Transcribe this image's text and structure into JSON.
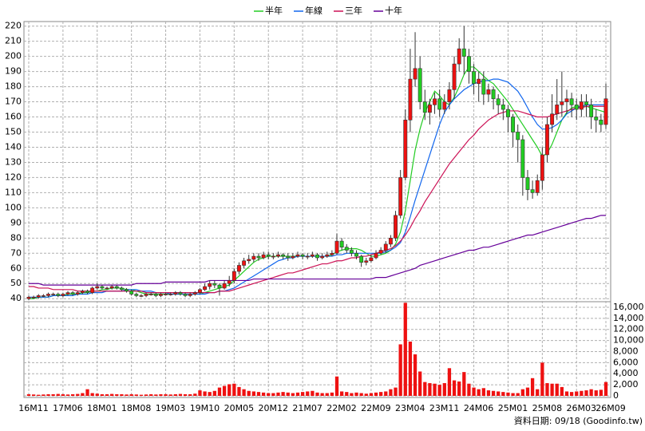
{
  "chart_data": {
    "type": "candlestick",
    "categories": [
      "16M11",
      null,
      null,
      null,
      null,
      null,
      null,
      "17M06",
      null,
      null,
      null,
      null,
      null,
      null,
      "18M01",
      null,
      null,
      null,
      null,
      null,
      null,
      "18M08",
      null,
      null,
      null,
      null,
      null,
      null,
      "19M03",
      null,
      null,
      null,
      null,
      null,
      null,
      "19M10",
      null,
      null,
      null,
      null,
      null,
      null,
      "20M05",
      null,
      null,
      null,
      null,
      null,
      null,
      "20M12",
      null,
      null,
      null,
      null,
      null,
      null,
      "21M07",
      null,
      null,
      null,
      null,
      null,
      null,
      "22M02",
      null,
      null,
      null,
      null,
      null,
      null,
      "22M09",
      null,
      null,
      null,
      null,
      null,
      null,
      "23M04",
      null,
      null,
      null,
      null,
      null,
      null,
      "23M11",
      null,
      null,
      null,
      null,
      null,
      null,
      "24M06",
      null,
      null,
      null,
      null,
      null,
      null,
      "25M01",
      null,
      null,
      null,
      null,
      null,
      null,
      "25M08",
      null,
      null,
      null,
      null,
      null,
      null,
      "26M03",
      null,
      null,
      null,
      null,
      null,
      "26M09"
    ],
    "open": [
      40,
      41,
      41,
      42,
      42,
      43,
      43,
      42,
      43,
      44,
      43,
      44,
      45,
      44,
      47,
      48,
      47,
      47,
      48,
      47,
      46,
      45,
      43,
      42,
      42,
      43,
      43,
      42,
      43,
      43,
      43,
      44,
      43,
      42,
      43,
      44,
      46,
      48,
      50,
      49,
      47,
      50,
      52,
      58,
      62,
      65,
      66,
      68,
      67,
      69,
      68,
      68,
      69,
      68,
      67,
      68,
      69,
      68,
      68,
      69,
      67,
      68,
      69,
      70,
      78,
      74,
      72,
      70,
      68,
      64,
      65,
      67,
      70,
      72,
      76,
      80,
      95,
      120,
      158,
      185,
      192,
      170,
      163,
      168,
      172,
      165,
      170,
      178,
      195,
      205,
      200,
      190,
      182,
      185,
      175,
      178,
      172,
      168,
      165,
      160,
      150,
      145,
      120,
      112,
      110,
      118,
      135,
      155,
      162,
      168,
      170,
      172,
      168,
      165,
      170,
      168,
      160,
      158,
      155
    ],
    "high": [
      42,
      42,
      43,
      43,
      44,
      44,
      44,
      44,
      45,
      45,
      45,
      46,
      46,
      48,
      50,
      49,
      48,
      49,
      49,
      48,
      47,
      46,
      44,
      43,
      44,
      44,
      44,
      44,
      44,
      44,
      45,
      45,
      44,
      44,
      45,
      47,
      50,
      52,
      52,
      50,
      52,
      55,
      60,
      64,
      67,
      69,
      70,
      70,
      71,
      71,
      70,
      71,
      70,
      70,
      70,
      71,
      70,
      70,
      71,
      70,
      70,
      71,
      72,
      83,
      80,
      76,
      74,
      72,
      69,
      67,
      69,
      72,
      74,
      78,
      82,
      98,
      125,
      165,
      205,
      216,
      200,
      178,
      172,
      176,
      178,
      175,
      183,
      200,
      212,
      220,
      205,
      195,
      190,
      190,
      182,
      180,
      175,
      172,
      168,
      162,
      155,
      148,
      125,
      118,
      122,
      140,
      160,
      175,
      185,
      190,
      178,
      176,
      172,
      175,
      175,
      172,
      165,
      162,
      182
    ],
    "low": [
      39,
      40,
      40,
      41,
      41,
      42,
      41,
      41,
      42,
      42,
      42,
      43,
      43,
      43,
      46,
      46,
      46,
      46,
      46,
      45,
      44,
      42,
      41,
      41,
      41,
      42,
      41,
      41,
      42,
      42,
      42,
      42,
      41,
      41,
      42,
      43,
      45,
      46,
      47,
      42,
      46,
      48,
      50,
      56,
      60,
      63,
      64,
      65,
      66,
      66,
      66,
      67,
      66,
      65,
      66,
      67,
      66,
      66,
      67,
      65,
      66,
      67,
      68,
      69,
      72,
      70,
      68,
      66,
      61,
      62,
      64,
      66,
      69,
      70,
      74,
      78,
      93,
      118,
      150,
      180,
      165,
      158,
      155,
      162,
      160,
      162,
      165,
      172,
      190,
      188,
      182,
      175,
      170,
      168,
      170,
      165,
      162,
      158,
      150,
      140,
      130,
      108,
      105,
      106,
      108,
      112,
      130,
      150,
      158,
      160,
      162,
      160,
      158,
      160,
      160,
      152,
      150,
      150,
      152
    ],
    "close": [
      41,
      41,
      42,
      42,
      43,
      43,
      42,
      43,
      44,
      43,
      44,
      45,
      44,
      47,
      48,
      47,
      47,
      48,
      47,
      46,
      45,
      43,
      42,
      42,
      43,
      43,
      42,
      43,
      43,
      43,
      44,
      43,
      42,
      43,
      44,
      46,
      48,
      50,
      49,
      47,
      50,
      52,
      58,
      62,
      65,
      66,
      68,
      67,
      69,
      68,
      68,
      69,
      68,
      67,
      68,
      69,
      68,
      68,
      69,
      67,
      68,
      69,
      70,
      78,
      74,
      72,
      70,
      68,
      64,
      65,
      67,
      70,
      72,
      76,
      80,
      95,
      120,
      158,
      185,
      192,
      170,
      163,
      168,
      172,
      165,
      170,
      178,
      195,
      205,
      200,
      190,
      182,
      185,
      175,
      178,
      172,
      168,
      165,
      160,
      150,
      145,
      120,
      112,
      110,
      118,
      135,
      155,
      162,
      168,
      170,
      172,
      168,
      165,
      170,
      168,
      160,
      158,
      155,
      172
    ],
    "volume": [
      300,
      250,
      200,
      250,
      300,
      300,
      350,
      300,
      250,
      300,
      350,
      500,
      1200,
      500,
      400,
      300,
      300,
      350,
      300,
      300,
      250,
      300,
      250,
      200,
      250,
      300,
      250,
      300,
      300,
      250,
      300,
      350,
      300,
      300,
      400,
      1000,
      800,
      700,
      900,
      1500,
      1800,
      2100,
      2200,
      1600,
      1200,
      900,
      800,
      700,
      600,
      500,
      500,
      600,
      700,
      600,
      500,
      600,
      700,
      800,
      900,
      600,
      500,
      500,
      600,
      3500,
      800,
      700,
      500,
      600,
      500,
      400,
      500,
      600,
      700,
      800,
      1200,
      1500,
      9300,
      16800,
      9800,
      7500,
      4400,
      2500,
      2300,
      2200,
      2000,
      2300,
      5000,
      2800,
      2600,
      4300,
      2200,
      1500,
      1200,
      1400,
      1000,
      900,
      800,
      700,
      600,
      500,
      500,
      1200,
      1500,
      3200,
      1200,
      6000,
      2300,
      2200,
      2200,
      1600,
      800,
      700,
      800,
      900,
      1000,
      1200,
      1000,
      1100,
      2500
    ],
    "up_color": "#ee1111",
    "down_color": "#22cc22",
    "volume_color": "#ee1111",
    "series": [
      {
        "name": "半年",
        "color": "#22cc22",
        "values": [
          40,
          40,
          41,
          41,
          41,
          42,
          42,
          42,
          43,
          43,
          43,
          44,
          44,
          45,
          45,
          46,
          46,
          47,
          47,
          47,
          46,
          46,
          45,
          44,
          43,
          43,
          43,
          43,
          43,
          43,
          43,
          43,
          43,
          43,
          43,
          43,
          44,
          45,
          46,
          47,
          48,
          49,
          52,
          55,
          58,
          61,
          64,
          66,
          67,
          68,
          68,
          68,
          68,
          68,
          68,
          68,
          68,
          68,
          68,
          68,
          68,
          68,
          69,
          71,
          72,
          73,
          73,
          73,
          72,
          70,
          68,
          68,
          69,
          70,
          72,
          76,
          84,
          98,
          118,
          138,
          152,
          163,
          170,
          177,
          174,
          170,
          168,
          173,
          180,
          188,
          193,
          193,
          190,
          187,
          184,
          182,
          178,
          174,
          170,
          165,
          160,
          155,
          150,
          145,
          140,
          134,
          136,
          142,
          150,
          158,
          163,
          166,
          167,
          167,
          167,
          166,
          165,
          164,
          163
        ]
      },
      {
        "name": "年線",
        "color": "#1166ee",
        "values": [
          41,
          41,
          41,
          41,
          41,
          42,
          42,
          42,
          42,
          42,
          43,
          43,
          43,
          44,
          44,
          44,
          45,
          45,
          45,
          45,
          46,
          46,
          46,
          45,
          45,
          45,
          44,
          44,
          44,
          43,
          43,
          43,
          43,
          43,
          43,
          43,
          43,
          44,
          44,
          45,
          45,
          46,
          47,
          49,
          51,
          53,
          55,
          57,
          59,
          61,
          63,
          65,
          66,
          67,
          67,
          68,
          68,
          68,
          68,
          68,
          68,
          68,
          68,
          69,
          69,
          70,
          70,
          70,
          70,
          70,
          70,
          70,
          70,
          71,
          72,
          74,
          77,
          84,
          94,
          105,
          115,
          125,
          135,
          145,
          155,
          163,
          168,
          172,
          175,
          178,
          180,
          182,
          183,
          184,
          184,
          185,
          185,
          184,
          183,
          180,
          177,
          172,
          166,
          160,
          155,
          152,
          152,
          153,
          155,
          158,
          162,
          164,
          166,
          167,
          168,
          168,
          168,
          168,
          168
        ]
      },
      {
        "name": "三年",
        "color": "#cc1155",
        "values": [
          48,
          48,
          47,
          47,
          47,
          46,
          46,
          46,
          46,
          46,
          45,
          45,
          45,
          45,
          45,
          45,
          45,
          45,
          45,
          45,
          45,
          45,
          45,
          45,
          44,
          44,
          44,
          44,
          44,
          44,
          44,
          44,
          44,
          44,
          44,
          44,
          44,
          44,
          44,
          45,
          45,
          45,
          46,
          47,
          48,
          49,
          50,
          51,
          52,
          53,
          54,
          55,
          56,
          57,
          57,
          58,
          59,
          60,
          61,
          62,
          63,
          63,
          64,
          65,
          65,
          66,
          67,
          67,
          68,
          68,
          69,
          70,
          71,
          72,
          73,
          75,
          78,
          82,
          87,
          93,
          98,
          104,
          109,
          114,
          119,
          124,
          129,
          133,
          137,
          141,
          145,
          148,
          152,
          155,
          158,
          160,
          162,
          163,
          164,
          164,
          164,
          163,
          162,
          161,
          160,
          160,
          160,
          161,
          162,
          163,
          164,
          165,
          166,
          166,
          167,
          167,
          167,
          167,
          167
        ]
      },
      {
        "name": "十年",
        "color": "#660099",
        "values": [
          50,
          50,
          50,
          49,
          49,
          49,
          49,
          49,
          49,
          49,
          49,
          49,
          49,
          49,
          49,
          49,
          49,
          49,
          49,
          49,
          49,
          49,
          50,
          50,
          50,
          50,
          50,
          50,
          51,
          51,
          51,
          51,
          51,
          51,
          51,
          51,
          51,
          52,
          52,
          52,
          52,
          52,
          52,
          52,
          52,
          52,
          53,
          53,
          53,
          53,
          53,
          53,
          53,
          53,
          53,
          53,
          53,
          53,
          53,
          53,
          53,
          53,
          53,
          53,
          53,
          53,
          53,
          53,
          53,
          53,
          53,
          54,
          54,
          54,
          55,
          56,
          57,
          58,
          59,
          60,
          62,
          63,
          64,
          65,
          66,
          67,
          68,
          69,
          70,
          71,
          72,
          72,
          73,
          74,
          74,
          75,
          76,
          77,
          78,
          79,
          80,
          81,
          82,
          82,
          83,
          84,
          85,
          86,
          87,
          88,
          89,
          90,
          91,
          92,
          93,
          93,
          94,
          95,
          95
        ]
      }
    ],
    "ylim": [
      38,
      223
    ],
    "yticks": [
      40,
      50,
      60,
      70,
      80,
      90,
      100,
      110,
      120,
      130,
      140,
      150,
      160,
      170,
      180,
      190,
      200,
      210,
      220
    ],
    "volume_lim": [
      0,
      17000
    ],
    "volume_ticks": [
      0,
      {
        "value": 2000,
        "label": "2,000"
      },
      {
        "value": 4000,
        "label": "4,000"
      },
      {
        "value": 6000,
        "label": "6,000"
      },
      {
        "value": 8000,
        "label": "8,000"
      },
      {
        "value": 10000,
        "label": "10,000"
      },
      {
        "value": 12000,
        "label": "12,000"
      },
      {
        "value": 14000,
        "label": "14,000"
      },
      {
        "value": 16000,
        "label": "16,000"
      }
    ],
    "grid": true,
    "source": "資料日期: 09/18 (Goodinfo.tw)"
  }
}
